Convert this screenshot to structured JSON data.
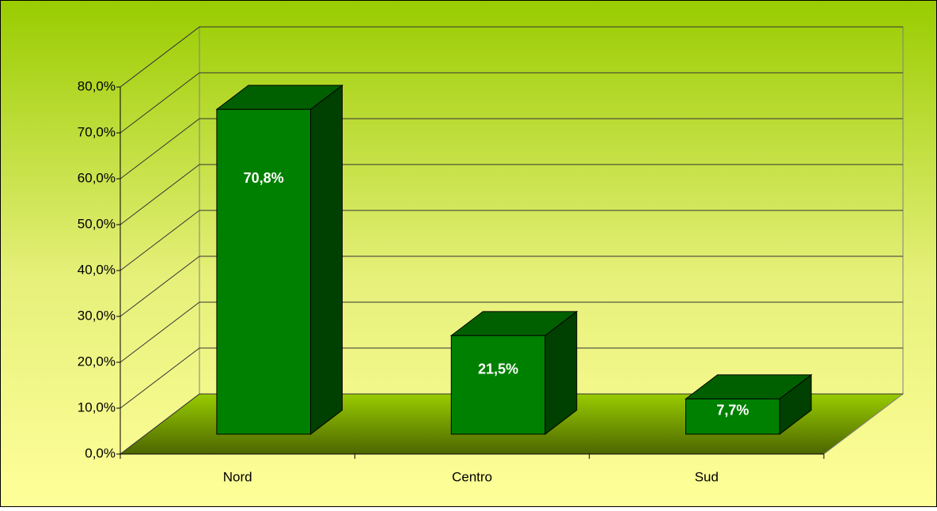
{
  "chart_data": {
    "type": "bar3d",
    "categories": [
      "Nord",
      "Centro",
      "Sud"
    ],
    "values": [
      70.8,
      21.5,
      7.7
    ],
    "value_labels": [
      "70,8%",
      "21,5%",
      "7,7%"
    ],
    "color": "#008000",
    "ylim": [
      0,
      80
    ],
    "yticks": [
      {
        "value": 0,
        "label": "0,0%"
      },
      {
        "value": 10,
        "label": "10,0%"
      },
      {
        "value": 20,
        "label": "20,0%"
      },
      {
        "value": 30,
        "label": "30,0%"
      },
      {
        "value": 40,
        "label": "40,0%"
      },
      {
        "value": 50,
        "label": "50,0%"
      },
      {
        "value": 60,
        "label": "60,0%"
      },
      {
        "value": 70,
        "label": "70,0%"
      },
      {
        "value": 80,
        "label": "80,0%"
      }
    ],
    "grid": true
  }
}
